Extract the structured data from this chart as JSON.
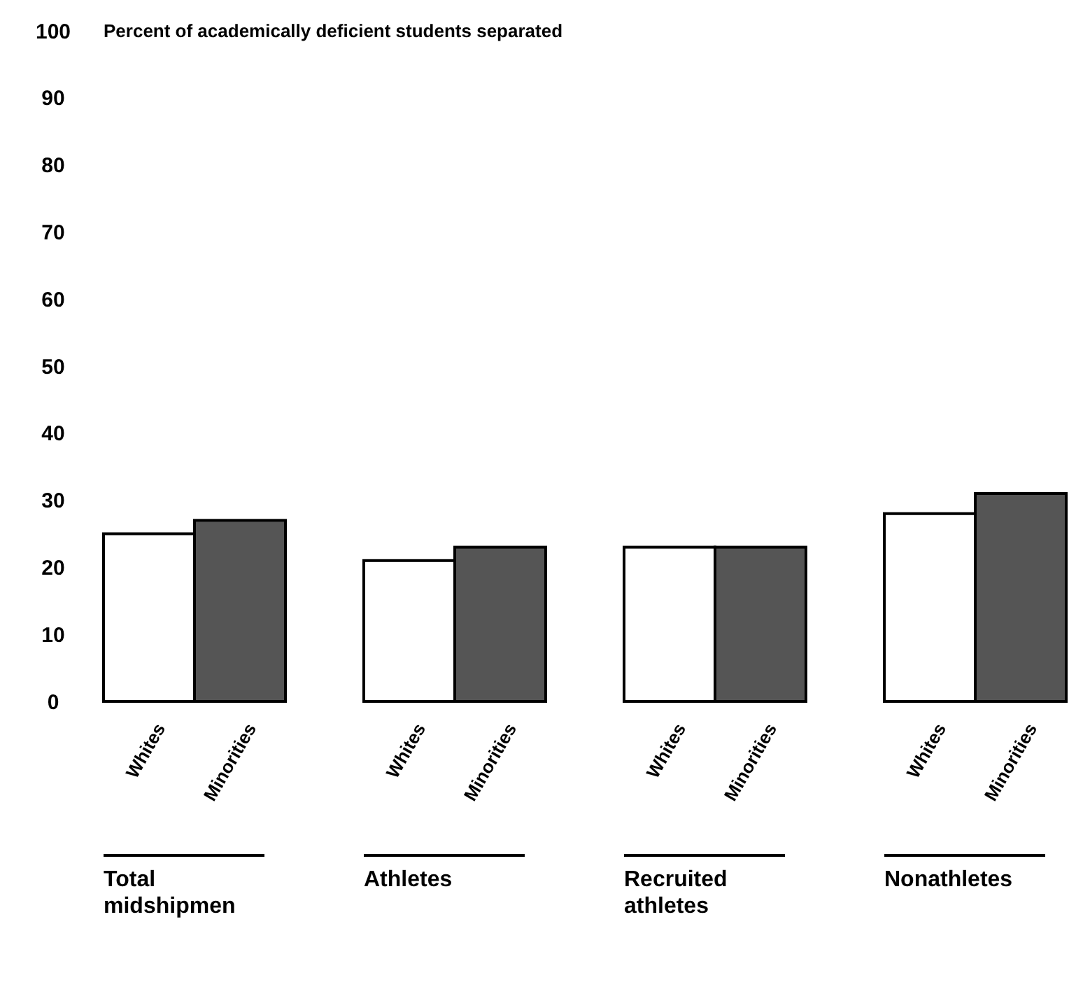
{
  "chart_data": {
    "type": "bar",
    "ylabel": "Percent of academically deficient students separated",
    "categories": [
      "Total midshipmen",
      "Athletes",
      "Recruited athletes",
      "Nonathletes"
    ],
    "series": [
      {
        "name": "Whites",
        "color": "#ffffff",
        "values": [
          25,
          21,
          23,
          28
        ]
      },
      {
        "name": "Minorities",
        "color": "#555555",
        "values": [
          27,
          23,
          23,
          31
        ]
      }
    ],
    "ylim": [
      0,
      100
    ],
    "yticks": [
      0,
      10,
      20,
      30,
      40,
      50,
      60,
      70,
      80,
      90,
      100
    ],
    "grid": false
  }
}
